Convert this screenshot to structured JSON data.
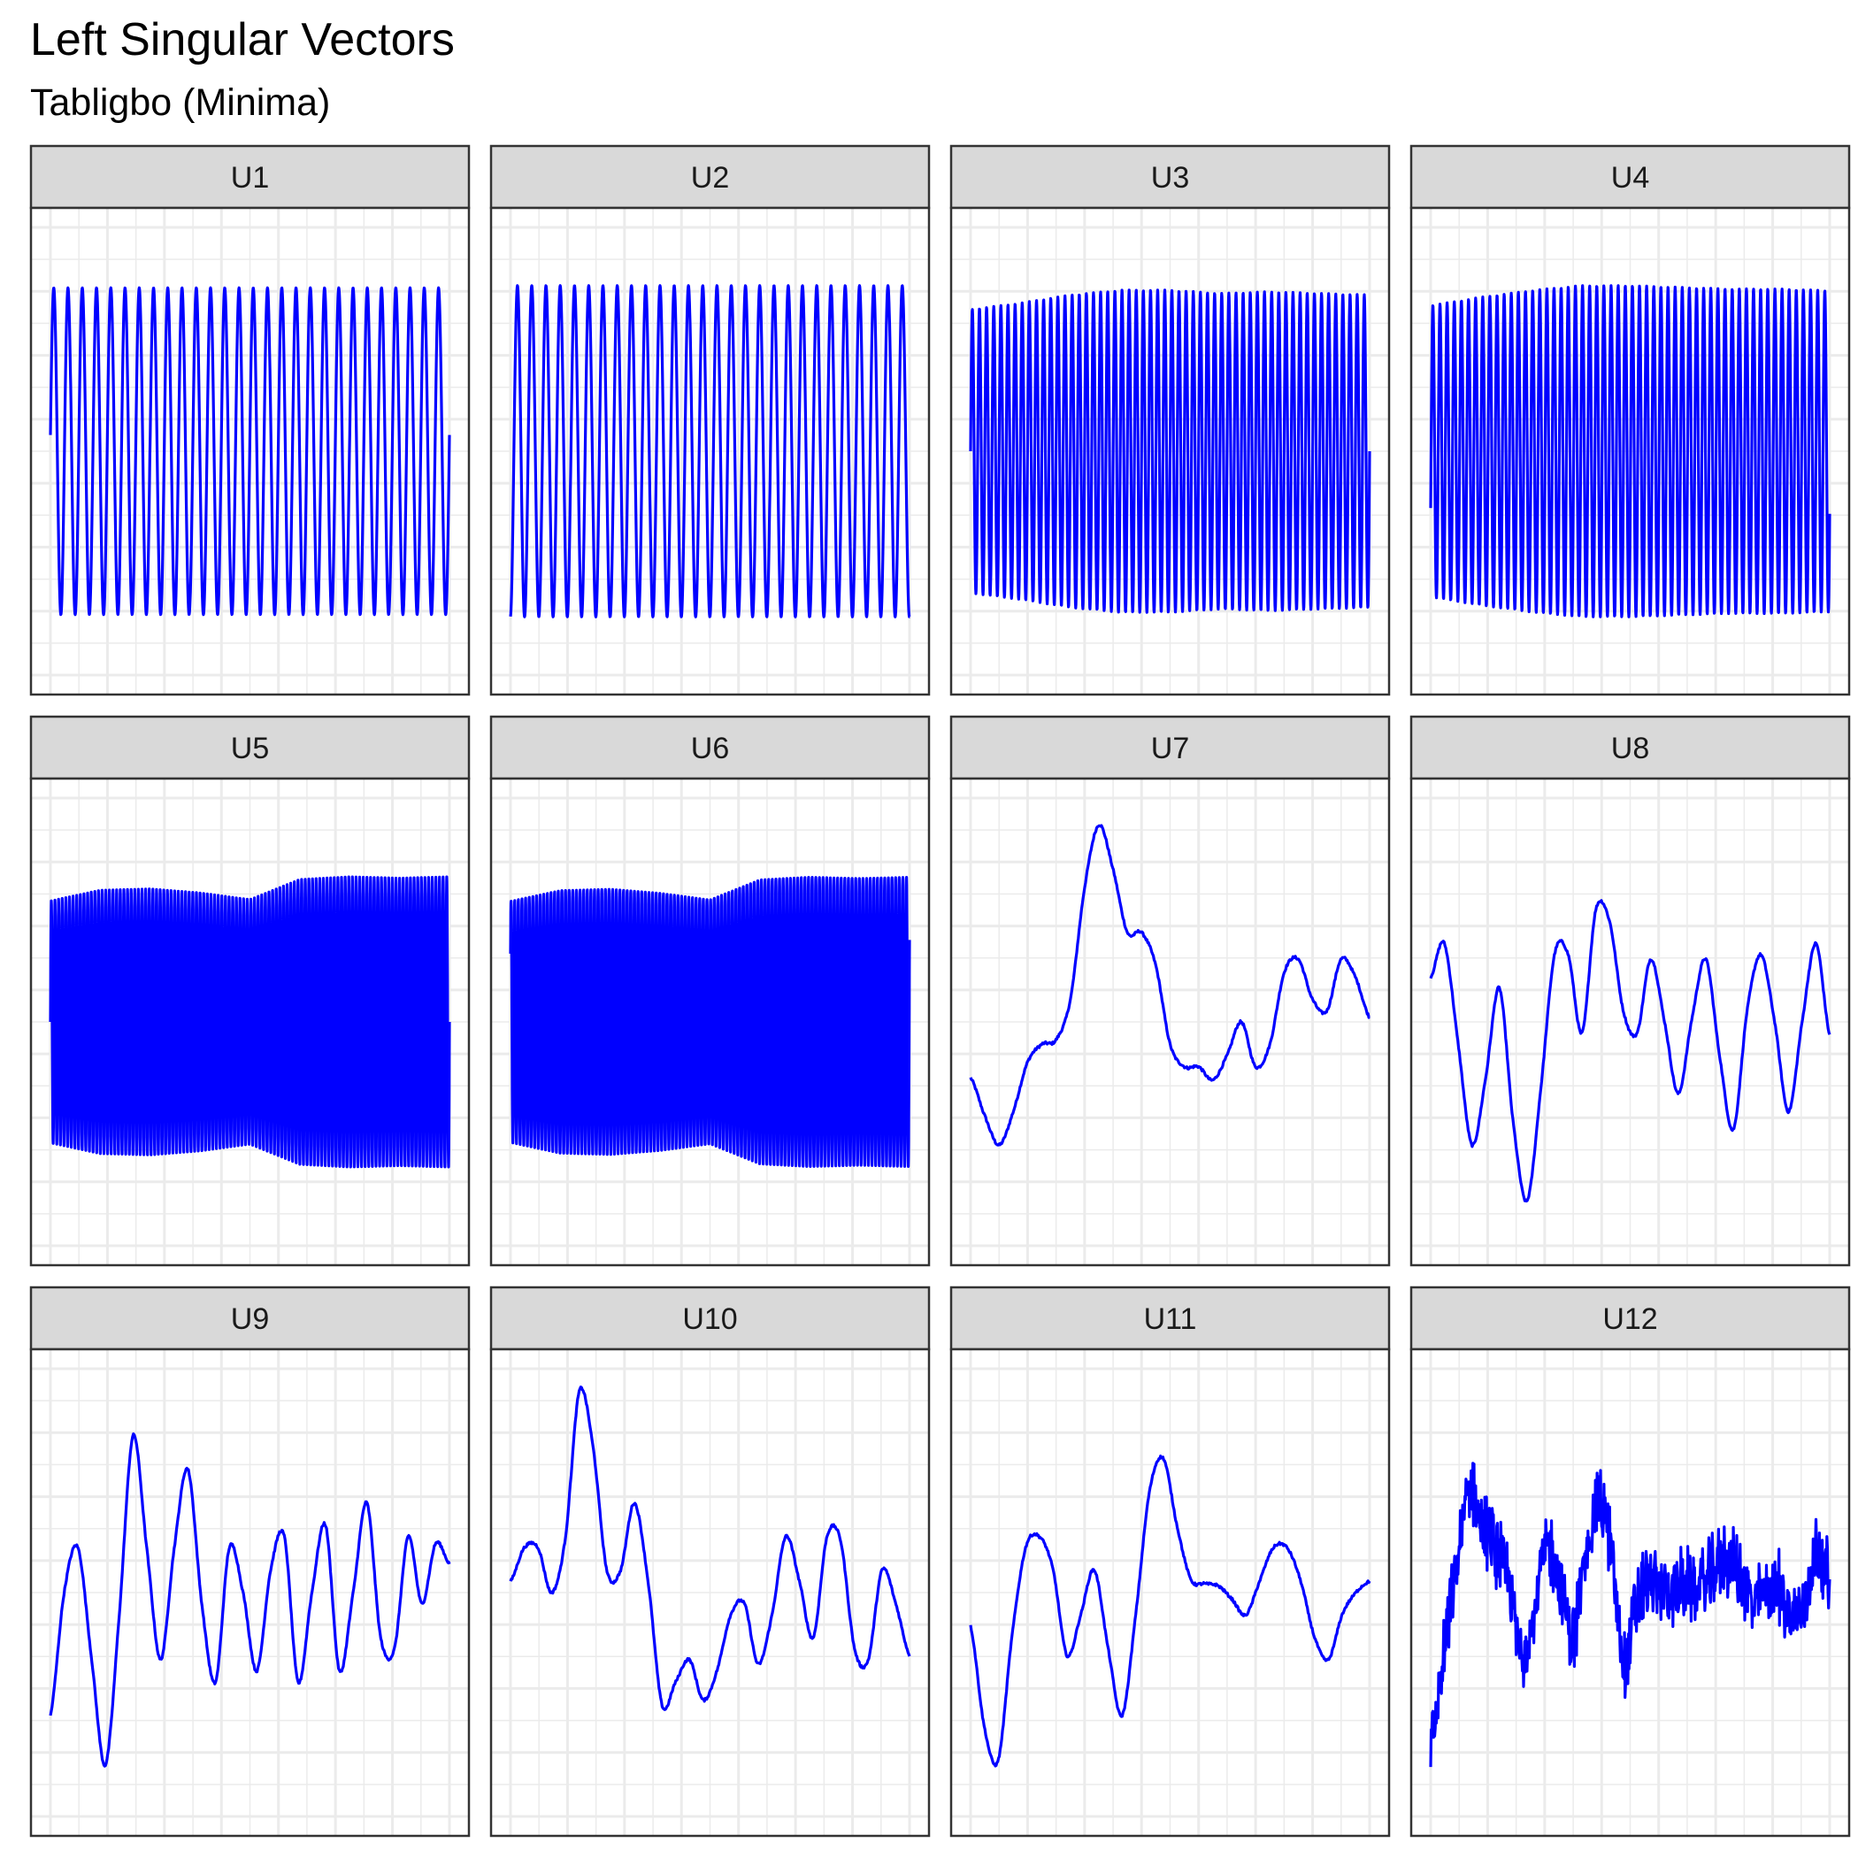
{
  "chart_data": {
    "type": "line",
    "title": "Left Singular Vectors",
    "subtitle": "Tabligbo (Minima)",
    "xlabel": "",
    "ylabel": "",
    "axis_ticks_shown": false,
    "grid": true,
    "line_color": "#0000ff",
    "layout": {
      "rows": 3,
      "cols": 4,
      "shared_scales": true
    },
    "y_range_normalized": [
      -1,
      1
    ],
    "x_range_normalized": [
      0,
      1
    ],
    "panels": [
      {
        "name": "U1",
        "kind": "sine",
        "cycles": 28,
        "amplitude": 0.73,
        "phase": 0.1,
        "mod": []
      },
      {
        "name": "U2",
        "kind": "sine",
        "cycles": 28,
        "amplitude": 0.74,
        "phase": -1.5,
        "mod": []
      },
      {
        "name": "U3",
        "kind": "sine",
        "cycles": 56,
        "amplitude": 0.72,
        "phase": 0.0,
        "mod": [
          0.88,
          0.92,
          0.97,
          1.0,
          1.0,
          0.98,
          0.99,
          0.98,
          0.97
        ]
      },
      {
        "name": "U4",
        "kind": "sine",
        "cycles": 56,
        "amplitude": 0.74,
        "phase": -0.4,
        "mod": [
          0.88,
          0.93,
          0.97,
          1.0,
          1.0,
          0.99,
          0.98,
          0.98,
          0.97
        ]
      },
      {
        "name": "U5",
        "kind": "sine",
        "cycles": 110,
        "amplitude": 0.6,
        "phase": 0.0,
        "mod": [
          0.9,
          0.98,
          0.99,
          0.96,
          0.91,
          1.06,
          1.08,
          1.07,
          1.08
        ]
      },
      {
        "name": "U6",
        "kind": "sine",
        "cycles": 110,
        "amplitude": 0.6,
        "phase": 0.6,
        "mod": [
          0.9,
          0.98,
          0.99,
          0.96,
          0.91,
          1.06,
          1.08,
          1.07,
          1.08
        ]
      },
      {
        "name": "U7",
        "kind": "curve",
        "values": [
          -0.25,
          -0.42,
          -0.55,
          -0.4,
          -0.18,
          -0.1,
          -0.08,
          0.1,
          0.6,
          0.88,
          0.68,
          0.4,
          0.4,
          0.25,
          -0.1,
          -0.2,
          -0.2,
          -0.26,
          -0.15,
          0.0,
          -0.2,
          -0.1,
          0.22,
          0.28,
          0.1,
          0.05,
          0.28,
          0.2,
          0.02
        ]
      },
      {
        "name": "U8",
        "kind": "curve",
        "values": [
          0.2,
          0.35,
          -0.1,
          -0.55,
          -0.25,
          0.15,
          -0.45,
          -0.8,
          -0.3,
          0.3,
          0.3,
          -0.05,
          0.5,
          0.45,
          0.05,
          -0.05,
          0.28,
          0.0,
          -0.32,
          0.02,
          0.28,
          -0.15,
          -0.48,
          0.05,
          0.3,
          0.0,
          -0.4,
          0.0,
          0.35,
          -0.06
        ]
      },
      {
        "name": "U9",
        "kind": "curve",
        "values": [
          -0.55,
          0.0,
          0.2,
          -0.3,
          -0.77,
          -0.1,
          0.7,
          0.2,
          -0.3,
          0.2,
          0.55,
          -0.05,
          -0.4,
          0.2,
          0.0,
          -0.35,
          0.1,
          0.25,
          -0.4,
          0.0,
          0.3,
          -0.35,
          0.0,
          0.4,
          -0.2,
          -0.25,
          0.25,
          -0.05,
          0.22,
          0.13
        ]
      },
      {
        "name": "U10",
        "kind": "curve",
        "values": [
          0.05,
          0.2,
          0.2,
          0.0,
          0.25,
          0.9,
          0.65,
          0.1,
          0.1,
          0.4,
          0.05,
          -0.5,
          -0.4,
          -0.3,
          -0.48,
          -0.35,
          -0.1,
          -0.05,
          -0.32,
          -0.1,
          0.25,
          0.05,
          -0.2,
          0.25,
          0.23,
          -0.25,
          -0.3,
          0.1,
          -0.05,
          -0.28
        ]
      },
      {
        "name": "U11",
        "kind": "curve",
        "values": [
          -0.15,
          -0.6,
          -0.75,
          -0.2,
          0.2,
          0.25,
          0.1,
          -0.28,
          -0.1,
          0.1,
          -0.25,
          -0.55,
          -0.1,
          0.45,
          0.6,
          0.3,
          0.06,
          0.04,
          0.03,
          -0.03,
          -0.1,
          0.05,
          0.2,
          0.2,
          0.05,
          -0.2,
          -0.3,
          -0.1,
          0.0,
          0.05
        ]
      },
      {
        "name": "U12",
        "kind": "noisy",
        "values": [
          -0.7,
          -0.3,
          0.1,
          0.45,
          0.3,
          0.2,
          0.05,
          -0.25,
          -0.1,
          0.2,
          0.05,
          -0.2,
          0.15,
          0.4,
          0.2,
          -0.3,
          -0.05,
          0.05,
          0.0,
          0.02,
          0.03,
          0.03,
          0.1,
          0.15,
          0.08,
          -0.05,
          0.0,
          0.03,
          -0.1,
          -0.05,
          0.2,
          0.04
        ]
      }
    ]
  }
}
